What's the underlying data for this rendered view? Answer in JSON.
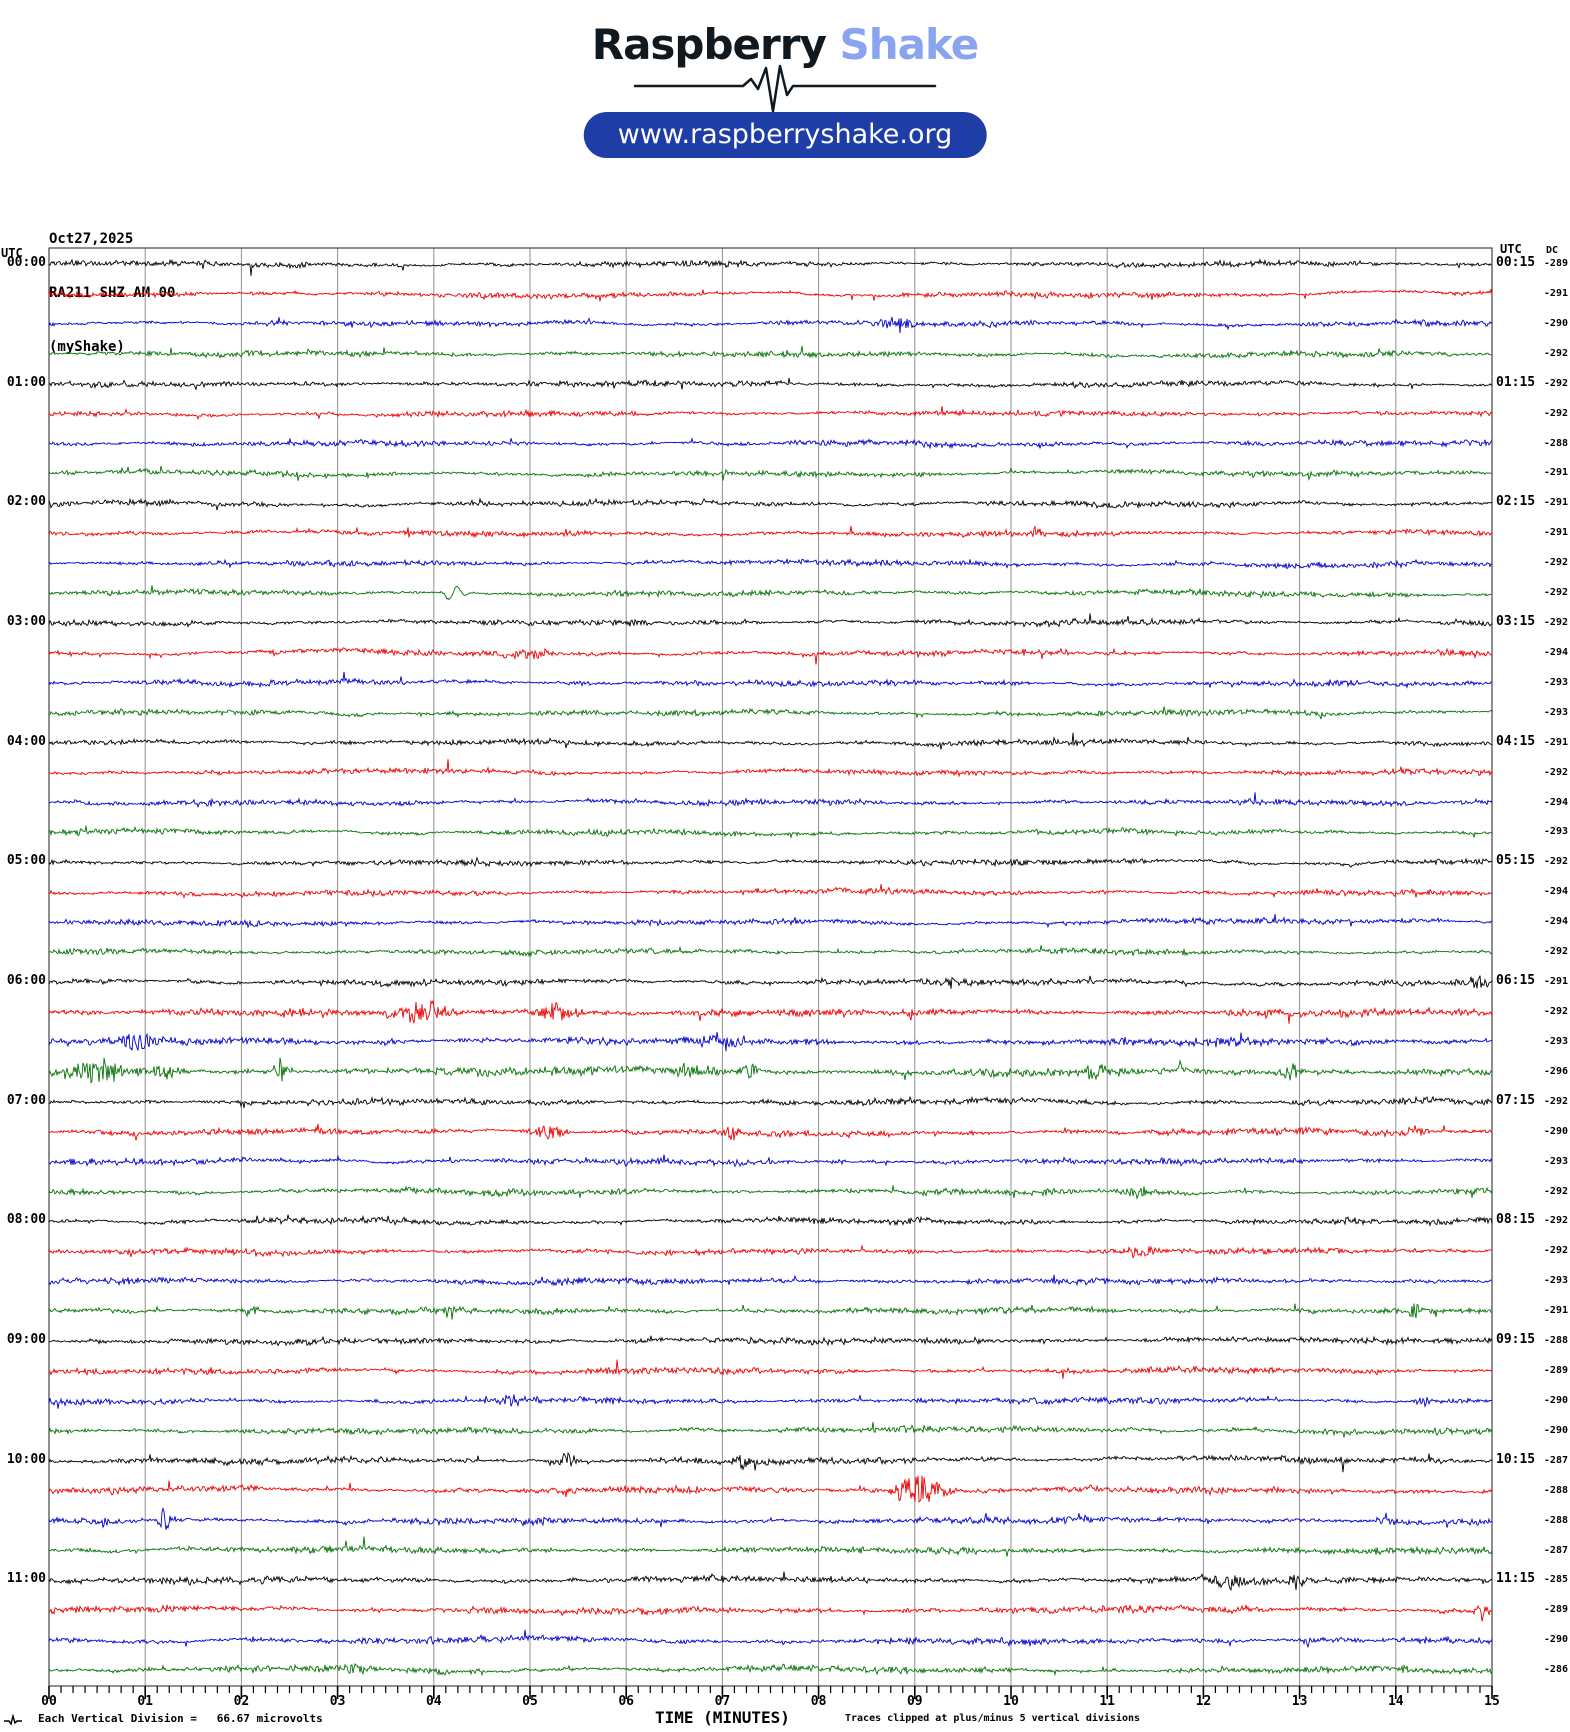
{
  "header": {
    "brand_primary": "Raspberry",
    "brand_secondary": " Shake",
    "url": "www.raspberryshake.org",
    "pill_color": "#1e3da6",
    "brand_secondary_color": "#8ba4f0"
  },
  "station": {
    "date": "Oct27,2025",
    "id": "RA211 SHZ AM 00",
    "network": "(myShake)"
  },
  "plot_headers": {
    "utc_left": "UTC",
    "utc_right": "UTC",
    "dc": "DC"
  },
  "footer": {
    "scale_note": "Each Vertical Division =   66.67 microvolts",
    "x_axis_label": "TIME (MINUTES)",
    "clip_note": "Traces clipped at plus/minus 5 vertical divisions"
  },
  "chart_data": {
    "type": "line",
    "subtype": "helicorder-seismogram",
    "title": "RA211 SHZ AM 00 helicorder, Oct27,2025",
    "xlabel": "TIME (MINUTES)",
    "x_range": [
      0,
      15
    ],
    "x_tick_labels": [
      "00",
      "01",
      "02",
      "03",
      "04",
      "05",
      "06",
      "07",
      "08",
      "09",
      "10",
      "11",
      "12",
      "13",
      "14",
      "15"
    ],
    "minor_ticks_per_minute": 8,
    "row_duration_minutes": 15,
    "grid": true,
    "trace_colors": {
      "black": "#000000",
      "red": "#ee0000",
      "blue": "#0000cc",
      "green": "#077307"
    },
    "dc_header": "DC",
    "rows": [
      {
        "start": "00:00",
        "color": "black",
        "dc": -289,
        "left": "00:00",
        "right": "00:15"
      },
      {
        "start": "00:15",
        "color": "red",
        "dc": -291
      },
      {
        "start": "00:30",
        "color": "blue",
        "dc": -290,
        "events": [
          {
            "m": 8.8,
            "a": 3,
            "w": 0.15
          }
        ]
      },
      {
        "start": "00:45",
        "color": "green",
        "dc": -292
      },
      {
        "start": "01:00",
        "color": "black",
        "dc": -292,
        "left": "01:00",
        "right": "01:15"
      },
      {
        "start": "01:15",
        "color": "red",
        "dc": -292
      },
      {
        "start": "01:30",
        "color": "blue",
        "dc": -288
      },
      {
        "start": "01:45",
        "color": "green",
        "dc": -291
      },
      {
        "start": "02:00",
        "color": "black",
        "dc": -291,
        "left": "02:00",
        "right": "02:15"
      },
      {
        "start": "02:15",
        "color": "red",
        "dc": -291,
        "events": [
          {
            "m": 10.25,
            "a": 6,
            "w": 0.05
          }
        ]
      },
      {
        "start": "02:30",
        "color": "blue",
        "dc": -292
      },
      {
        "start": "02:45",
        "color": "green",
        "dc": -292,
        "events": [
          {
            "m": 4.2,
            "a": 8,
            "w": 0.07,
            "t": "p"
          }
        ]
      },
      {
        "start": "03:00",
        "color": "black",
        "dc": -292,
        "left": "03:00",
        "right": "03:15"
      },
      {
        "start": "03:15",
        "color": "red",
        "dc": -294,
        "events": [
          {
            "m": 5.0,
            "a": 3,
            "w": 0.2
          }
        ]
      },
      {
        "start": "03:30",
        "color": "blue",
        "dc": -293
      },
      {
        "start": "03:45",
        "color": "green",
        "dc": -293,
        "events": [
          {
            "m": 11.6,
            "a": 4,
            "w": 0.04
          }
        ]
      },
      {
        "start": "04:00",
        "color": "black",
        "dc": -291,
        "left": "04:00",
        "right": "04:15"
      },
      {
        "start": "04:15",
        "color": "red",
        "dc": -292
      },
      {
        "start": "04:30",
        "color": "blue",
        "dc": -294
      },
      {
        "start": "04:45",
        "color": "green",
        "dc": -293
      },
      {
        "start": "05:00",
        "color": "black",
        "dc": -292,
        "left": "05:00",
        "right": "05:15"
      },
      {
        "start": "05:15",
        "color": "red",
        "dc": -294
      },
      {
        "start": "05:30",
        "color": "blue",
        "dc": -294
      },
      {
        "start": "05:45",
        "color": "green",
        "dc": -292
      },
      {
        "start": "06:00",
        "color": "black",
        "dc": -291,
        "amp": 2.5,
        "left": "06:00",
        "right": "06:15",
        "events": [
          {
            "m": 14.85,
            "a": 6,
            "w": 0.06
          }
        ]
      },
      {
        "start": "06:15",
        "color": "red",
        "dc": -292,
        "amp": 3.0,
        "events": [
          {
            "m": 3.9,
            "a": 8,
            "w": 0.18
          },
          {
            "m": 5.3,
            "a": 7,
            "w": 0.15
          }
        ]
      },
      {
        "start": "06:30",
        "color": "blue",
        "dc": -293,
        "amp": 3.2,
        "events": [
          {
            "m": 0.95,
            "a": 6,
            "w": 0.2
          },
          {
            "m": 7.0,
            "a": 5,
            "w": 0.15
          }
        ]
      },
      {
        "start": "06:45",
        "color": "green",
        "dc": -296,
        "amp": 3.4,
        "events": [
          {
            "m": 0.5,
            "a": 8,
            "w": 0.2
          },
          {
            "m": 1.2,
            "a": 5,
            "w": 0.1
          },
          {
            "m": 2.4,
            "a": 8,
            "w": 0.05
          },
          {
            "m": 6.7,
            "a": 6,
            "w": 0.15
          },
          {
            "m": 7.3,
            "a": 5,
            "w": 0.1
          },
          {
            "m": 10.9,
            "a": 5,
            "w": 0.1
          },
          {
            "m": 12.9,
            "a": 6,
            "w": 0.1
          }
        ]
      },
      {
        "start": "07:00",
        "color": "black",
        "dc": -292,
        "amp": 2.5,
        "left": "07:00",
        "right": "07:15"
      },
      {
        "start": "07:15",
        "color": "red",
        "dc": -290,
        "amp": 2.5,
        "events": [
          {
            "m": 5.2,
            "a": 6,
            "w": 0.12
          },
          {
            "m": 7.1,
            "a": 5,
            "w": 0.08
          },
          {
            "m": 14.2,
            "a": 4,
            "w": 0.06
          }
        ]
      },
      {
        "start": "07:30",
        "color": "blue",
        "dc": -293,
        "amp": 2.5
      },
      {
        "start": "07:45",
        "color": "green",
        "dc": -292,
        "amp": 2.4,
        "events": [
          {
            "m": 11.3,
            "a": 4,
            "w": 0.1
          }
        ]
      },
      {
        "start": "08:00",
        "color": "black",
        "dc": -292,
        "amp": 2.4,
        "left": "08:00",
        "right": "08:15"
      },
      {
        "start": "08:15",
        "color": "red",
        "dc": -292,
        "amp": 2.4,
        "events": [
          {
            "m": 11.3,
            "a": 4,
            "w": 0.12
          }
        ]
      },
      {
        "start": "08:30",
        "color": "blue",
        "dc": -293,
        "amp": 2.4
      },
      {
        "start": "08:45",
        "color": "green",
        "dc": -291,
        "amp": 2.4,
        "events": [
          {
            "m": 2.1,
            "a": 4,
            "w": 0.06
          },
          {
            "m": 14.2,
            "a": 5,
            "w": 0.05
          }
        ]
      },
      {
        "start": "09:00",
        "color": "black",
        "dc": -288,
        "amp": 2.5,
        "left": "09:00",
        "right": "09:15"
      },
      {
        "start": "09:15",
        "color": "red",
        "dc": -289,
        "amp": 2.5
      },
      {
        "start": "09:30",
        "color": "blue",
        "dc": -290,
        "amp": 2.5,
        "events": [
          {
            "m": 4.8,
            "a": 4,
            "w": 0.08
          },
          {
            "m": 14.3,
            "a": 3,
            "w": 0.08
          }
        ]
      },
      {
        "start": "09:45",
        "color": "green",
        "dc": -290,
        "amp": 2.5
      },
      {
        "start": "10:00",
        "color": "black",
        "dc": -287,
        "amp": 2.6,
        "left": "10:00",
        "right": "10:15",
        "events": [
          {
            "m": 5.4,
            "a": 7,
            "w": 0.06
          },
          {
            "m": 7.2,
            "a": 6,
            "w": 0.05
          }
        ]
      },
      {
        "start": "10:15",
        "color": "red",
        "dc": -288,
        "amp": 2.6,
        "events": [
          {
            "m": 9.05,
            "a": 11,
            "w": 0.18
          }
        ]
      },
      {
        "start": "10:30",
        "color": "blue",
        "dc": -288,
        "amp": 2.6,
        "events": [
          {
            "m": 1.2,
            "a": 9,
            "w": 0.04
          },
          {
            "m": 13.9,
            "a": 5,
            "w": 0.06
          }
        ]
      },
      {
        "start": "10:45",
        "color": "green",
        "dc": -287,
        "amp": 2.6
      },
      {
        "start": "11:00",
        "color": "black",
        "dc": -285,
        "amp": 2.6,
        "left": "11:00",
        "right": "11:15",
        "events": [
          {
            "m": 12.25,
            "a": 5,
            "w": 0.1
          },
          {
            "m": 13.0,
            "a": 5,
            "w": 0.1
          }
        ]
      },
      {
        "start": "11:15",
        "color": "red",
        "dc": -289,
        "amp": 2.7,
        "events": [
          {
            "m": 14.9,
            "a": 6,
            "w": 0.05
          }
        ]
      },
      {
        "start": "11:30",
        "color": "blue",
        "dc": -290,
        "amp": 2.6,
        "events": [
          {
            "m": 13.1,
            "a": 4,
            "w": 0.04
          }
        ]
      },
      {
        "start": "11:45",
        "color": "green",
        "dc": -286,
        "amp": 2.6,
        "events": [
          {
            "m": 3.2,
            "a": 4,
            "w": 0.1
          }
        ]
      }
    ]
  }
}
